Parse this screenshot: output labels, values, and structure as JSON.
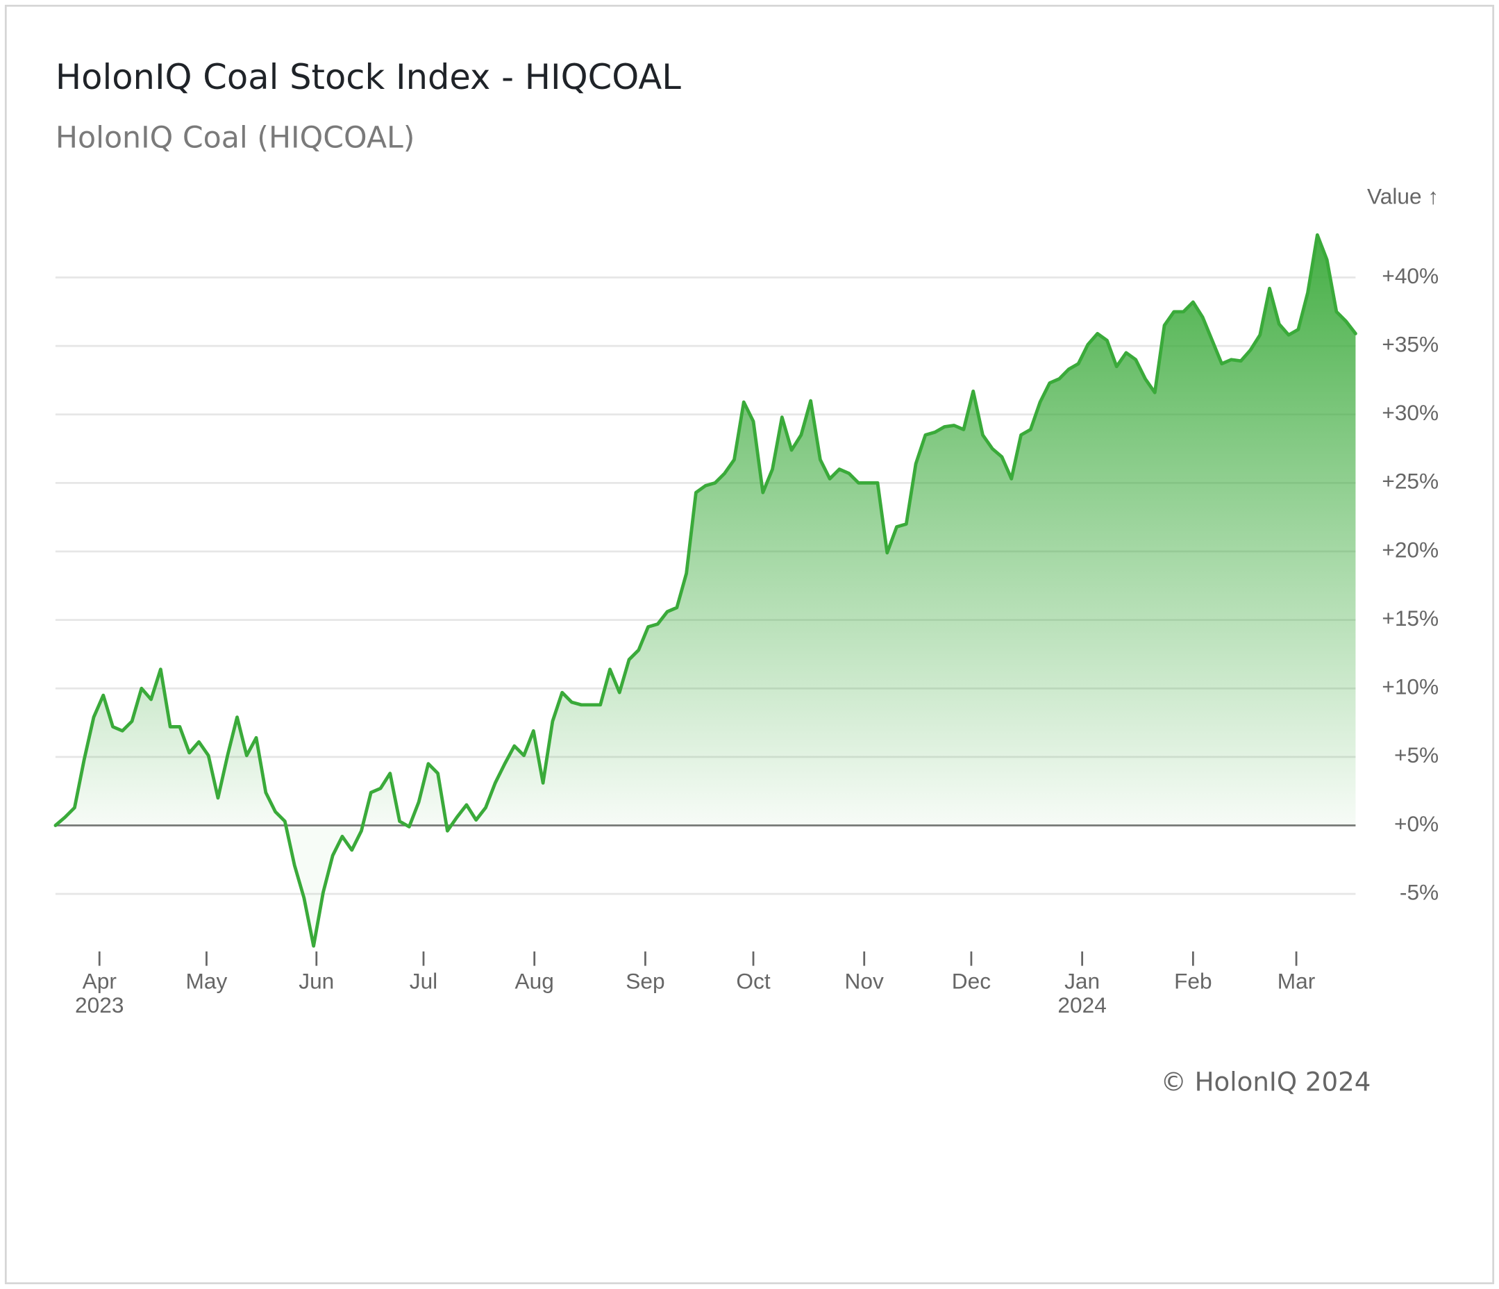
{
  "chart_data": {
    "type": "area",
    "title": "HolonIQ Coal Stock Index - HIQCOAL",
    "subtitle": "HolonIQ Coal (HIQCOAL)",
    "y_label": "Value ↑",
    "credit": "© HolonIQ 2024",
    "series": [
      {
        "name": "HolonIQ Coal (HIQCOAL)",
        "color": "#3aaa3a",
        "values": [
          0,
          0.6,
          1.3,
          4.8,
          7.9,
          9.5,
          7.2,
          6.9,
          7.6,
          10.0,
          9.2,
          11.4,
          7.2,
          7.2,
          5.3,
          6.1,
          5.1,
          2.0,
          5.1,
          7.9,
          5.1,
          6.4,
          2.4,
          1.0,
          0.3,
          -2.9,
          -5.3,
          -8.8,
          -4.9,
          -2.2,
          -0.8,
          -1.8,
          -0.4,
          2.4,
          2.7,
          3.8,
          0.3,
          -0.1,
          1.7,
          4.5,
          3.8,
          -0.4,
          0.6,
          1.5,
          0.4,
          1.3,
          3.1,
          4.5,
          5.8,
          5.1,
          6.9,
          3.1,
          7.6,
          9.7,
          9.0,
          8.8,
          8.8,
          8.8,
          11.4,
          9.7,
          12.1,
          12.8,
          14.5,
          14.7,
          15.6,
          15.9,
          18.4,
          24.3,
          24.8,
          25.0,
          25.7,
          26.7,
          30.9,
          29.5,
          24.3,
          26.0,
          29.8,
          27.4,
          28.5,
          31.0,
          26.7,
          25.3,
          26.0,
          25.7,
          25.0,
          25.0,
          25.0,
          19.9,
          21.8,
          22.0,
          26.4,
          28.5,
          28.7,
          29.1,
          29.2,
          28.9,
          31.7,
          28.5,
          27.5,
          26.9,
          25.3,
          28.5,
          28.9,
          30.9,
          32.3,
          32.6,
          33.3,
          33.7,
          35.1,
          35.9,
          35.4,
          33.5,
          34.5,
          34.0,
          32.6,
          31.6,
          36.5,
          37.5,
          37.5,
          38.2,
          37.1,
          35.4,
          33.7,
          34.0,
          33.9,
          34.7,
          35.8,
          39.2,
          36.6,
          35.8,
          36.2,
          38.9,
          43.1,
          41.3,
          37.5,
          36.8,
          35.9
        ]
      }
    ],
    "xlim": [
      0,
      136
    ],
    "xticks": [
      {
        "value": 4.6,
        "label": "Apr\n2023"
      },
      {
        "value": 15.8,
        "label": "May"
      },
      {
        "value": 27.3,
        "label": "Jun"
      },
      {
        "value": 38.5,
        "label": "Jul"
      },
      {
        "value": 50.1,
        "label": "Aug"
      },
      {
        "value": 61.7,
        "label": "Sep"
      },
      {
        "value": 73,
        "label": "Oct"
      },
      {
        "value": 84.6,
        "label": "Nov"
      },
      {
        "value": 95.8,
        "label": "Dec"
      },
      {
        "value": 107.4,
        "label": "Jan\n2024"
      },
      {
        "value": 119,
        "label": "Feb"
      },
      {
        "value": 129.8,
        "label": "Mar"
      }
    ],
    "ylim": [
      -9.2,
      43.5
    ],
    "yticks": [
      {
        "value": -5,
        "label": "-5%"
      },
      {
        "value": 0,
        "label": "+0%"
      },
      {
        "value": 5,
        "label": "+5%"
      },
      {
        "value": 10,
        "label": "+10%"
      },
      {
        "value": 15,
        "label": "+15%"
      },
      {
        "value": 20,
        "label": "+20%"
      },
      {
        "value": 25,
        "label": "+25%"
      },
      {
        "value": 30,
        "label": "+30%"
      },
      {
        "value": 35,
        "label": "+35%"
      },
      {
        "value": 40,
        "label": "+40%"
      }
    ],
    "grid": true
  }
}
